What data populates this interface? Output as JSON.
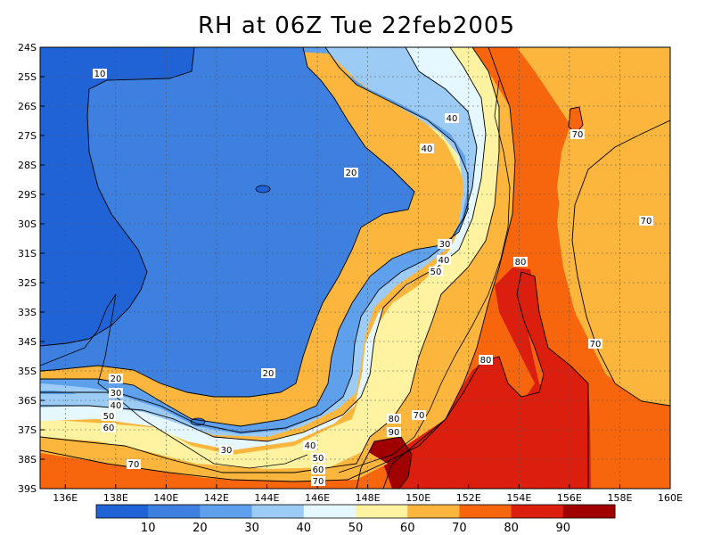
{
  "title": "RH at 06Z Tue 22feb2005",
  "map": {
    "lon_range": [
      135,
      160
    ],
    "lat_range": [
      -39,
      -24
    ],
    "lon_ticks": [
      "136E",
      "138E",
      "140E",
      "142E",
      "144E",
      "146E",
      "148E",
      "150E",
      "152E",
      "154E",
      "156E",
      "158E",
      "160E"
    ],
    "lat_ticks": [
      "24S",
      "25S",
      "26S",
      "27S",
      "28S",
      "29S",
      "30S",
      "31S",
      "32S",
      "33S",
      "34S",
      "35S",
      "36S",
      "37S",
      "38S",
      "39S"
    ],
    "contour_labels": [
      {
        "text": "10"
      },
      {
        "text": "40"
      },
      {
        "text": "70"
      },
      {
        "text": "40"
      },
      {
        "text": "20"
      },
      {
        "text": "70"
      },
      {
        "text": "30"
      },
      {
        "text": "40"
      },
      {
        "text": "80"
      },
      {
        "text": "50"
      },
      {
        "text": "70"
      },
      {
        "text": "80"
      },
      {
        "text": "20"
      },
      {
        "text": "20"
      },
      {
        "text": "30"
      },
      {
        "text": "40"
      },
      {
        "text": "50"
      },
      {
        "text": "60"
      },
      {
        "text": "80"
      },
      {
        "text": "70"
      },
      {
        "text": "90"
      },
      {
        "text": "40"
      },
      {
        "text": "30"
      },
      {
        "text": "50"
      },
      {
        "text": "60"
      },
      {
        "text": "70"
      },
      {
        "text": "70"
      }
    ]
  },
  "colorbar": {
    "labels": [
      "10",
      "20",
      "30",
      "40",
      "50",
      "60",
      "70",
      "80",
      "90"
    ],
    "colors": [
      "#1f63d6",
      "#3d80e0",
      "#5ea0ec",
      "#9ccbf5",
      "#e6f8ff",
      "#fff2a0",
      "#fcb63e",
      "#f7660d",
      "#dc1e0e",
      "#a00000"
    ]
  },
  "palette": {
    "rh0_10": "#1f63d6",
    "rh10_20": "#3d80e0",
    "rh20_30": "#5ea0ec",
    "rh30_40": "#9ccbf5",
    "rh40_50": "#e6f8ff",
    "rh50_60": "#fff2a0",
    "rh60_70": "#fcb63e",
    "rh70_80": "#f7660d",
    "rh80_90": "#dc1e0e",
    "rh90_100": "#a00000"
  }
}
